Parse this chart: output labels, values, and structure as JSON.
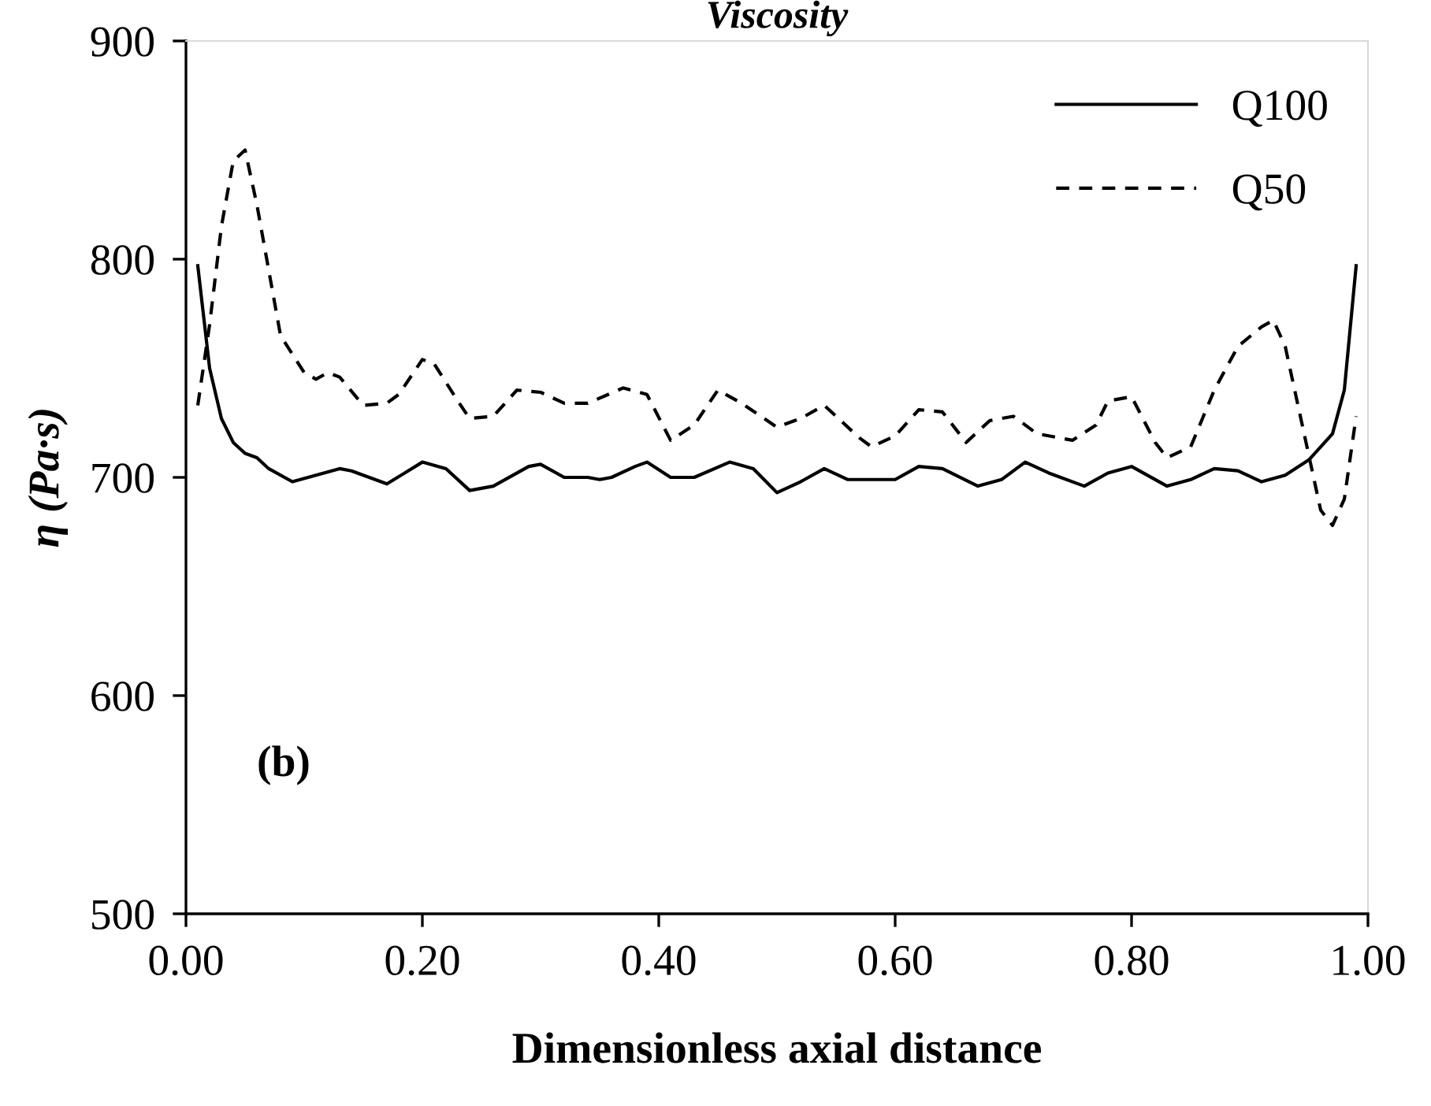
{
  "chart_data": {
    "type": "line",
    "title": "Viscosity",
    "xlabel": "Dimensionless axial distance",
    "ylabel": "η (Pa·s)",
    "xlim": [
      0,
      1
    ],
    "xticks": [
      {
        "value": 0,
        "label": "0.00"
      },
      {
        "value": 0.2,
        "label": "0.20"
      },
      {
        "value": 0.4,
        "label": "0.40"
      },
      {
        "value": 0.6,
        "label": "0.60"
      },
      {
        "value": 0.8,
        "label": "0.80"
      },
      {
        "value": 1,
        "label": "1.00"
      }
    ],
    "ylim": [
      500,
      900
    ],
    "yticks": [
      500,
      600,
      700,
      800,
      900
    ],
    "grid": false,
    "legend": "top right",
    "marker": "none",
    "annotations": [
      "(b)"
    ],
    "series": [
      {
        "name": "Q100",
        "color": "#000000",
        "line_style": "solid",
        "x": [
          0.01,
          0.02,
          0.03,
          0.04,
          0.05,
          0.06,
          0.07,
          0.09,
          0.11,
          0.13,
          0.14,
          0.16,
          0.17,
          0.2,
          0.22,
          0.24,
          0.26,
          0.29,
          0.3,
          0.32,
          0.34,
          0.35,
          0.36,
          0.38,
          0.39,
          0.41,
          0.43,
          0.46,
          0.48,
          0.5,
          0.52,
          0.54,
          0.56,
          0.6,
          0.62,
          0.64,
          0.67,
          0.69,
          0.71,
          0.73,
          0.76,
          0.78,
          0.8,
          0.83,
          0.85,
          0.87,
          0.89,
          0.91,
          0.93,
          0.95,
          0.97,
          0.98,
          0.99
        ],
        "values": [
          797,
          750,
          727,
          716,
          711,
          709,
          704,
          698,
          701,
          704,
          703,
          699,
          697,
          707,
          704,
          694,
          696,
          705,
          706,
          700,
          700,
          699,
          700,
          705,
          707,
          700,
          700,
          707,
          704,
          693,
          698,
          704,
          699,
          699,
          705,
          704,
          696,
          699,
          707,
          702,
          696,
          702,
          705,
          696,
          699,
          704,
          703,
          698,
          701,
          708,
          720,
          740,
          797
        ]
      },
      {
        "name": "Q50",
        "color": "#000000",
        "line_style": "dashed",
        "x": [
          0.01,
          0.02,
          0.03,
          0.04,
          0.05,
          0.06,
          0.07,
          0.08,
          0.1,
          0.11,
          0.12,
          0.13,
          0.15,
          0.17,
          0.18,
          0.2,
          0.21,
          0.23,
          0.24,
          0.26,
          0.28,
          0.3,
          0.32,
          0.34,
          0.37,
          0.39,
          0.41,
          0.43,
          0.45,
          0.47,
          0.5,
          0.52,
          0.54,
          0.57,
          0.58,
          0.6,
          0.62,
          0.64,
          0.66,
          0.68,
          0.7,
          0.72,
          0.75,
          0.77,
          0.78,
          0.8,
          0.82,
          0.83,
          0.85,
          0.87,
          0.89,
          0.91,
          0.92,
          0.93,
          0.95,
          0.96,
          0.97,
          0.98,
          0.99
        ],
        "values": [
          733,
          770,
          815,
          845,
          850,
          825,
          795,
          765,
          748,
          745,
          748,
          746,
          733,
          734,
          738,
          754,
          752,
          735,
          727,
          728,
          740,
          739,
          734,
          734,
          741,
          738,
          717,
          724,
          740,
          734,
          723,
          727,
          733,
          718,
          714,
          719,
          731,
          730,
          716,
          726,
          728,
          720,
          717,
          724,
          735,
          737,
          716,
          709,
          714,
          740,
          760,
          769,
          772,
          760,
          710,
          685,
          678,
          690,
          728
        ]
      }
    ]
  }
}
